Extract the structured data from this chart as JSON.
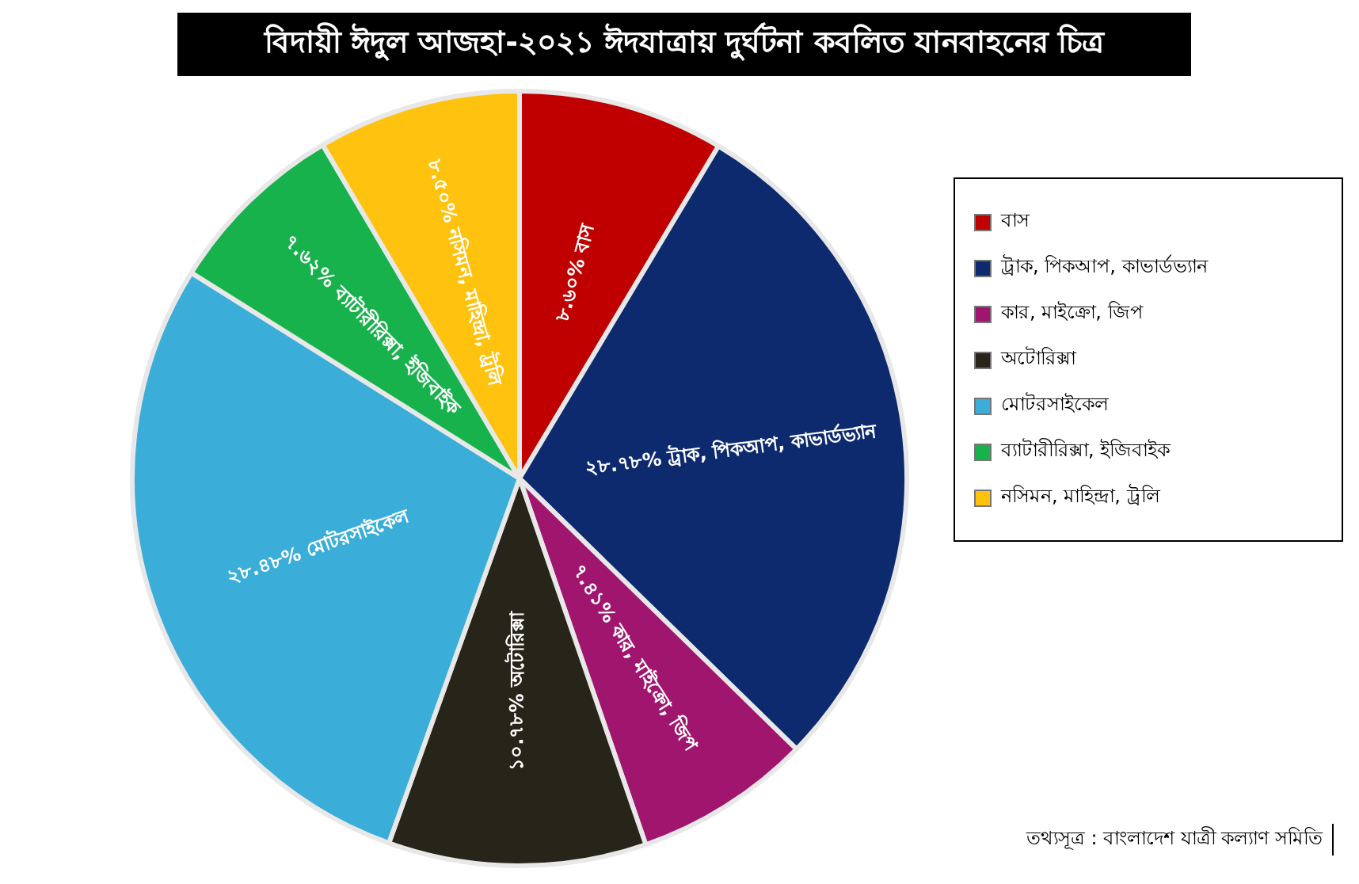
{
  "chart_data": {
    "type": "pie",
    "title": "বিদায়ী ঈদুল আজহা-২০২১ ঈদযাত্রায় দুর্ঘটনা কবলিত যানবাহনের চিত্র",
    "categories": [
      "বাস",
      "ট্রাক, পিকআপ, কাভার্ডভ্যান",
      "কার, মাইক্রো, জিপ",
      "অটোরিক্সা",
      "মোটরসাইকেল",
      "ব্যাটারীরিক্সা, ইজিবাইক",
      "নসিমন, মাহিন্দ্রা, ট্রলি"
    ],
    "values": [
      8.6,
      28.78,
      7.41,
      10.78,
      28.48,
      7.62,
      8.5
    ],
    "value_labels": [
      "৮.৬০% বাস",
      "২৮.৭৮% ট্রাক, পিকআপ, কাভার্ডভ্যান",
      "৭.৪১% কার, মাইক্রো, জিপ",
      "১০.৭৮% অটোরিক্সা",
      "২৮.৪৮% মোটরসাইকেল",
      "৭.৬২% ব্যাটারীরিক্সা, ইজিবাইক",
      "৮.৫০% নসিমন, মাহিন্দ্রা, ট্রলি"
    ],
    "colors": [
      "#c00000",
      "#0d2a6e",
      "#a0156e",
      "#27241a",
      "#3aaed8",
      "#17b24c",
      "#ffc20e"
    ],
    "legend": "right",
    "annotations": [
      "তথ্যসূত্র : বাংলাদেশ যাত্রী কল্যাণ সমিতি"
    ]
  }
}
